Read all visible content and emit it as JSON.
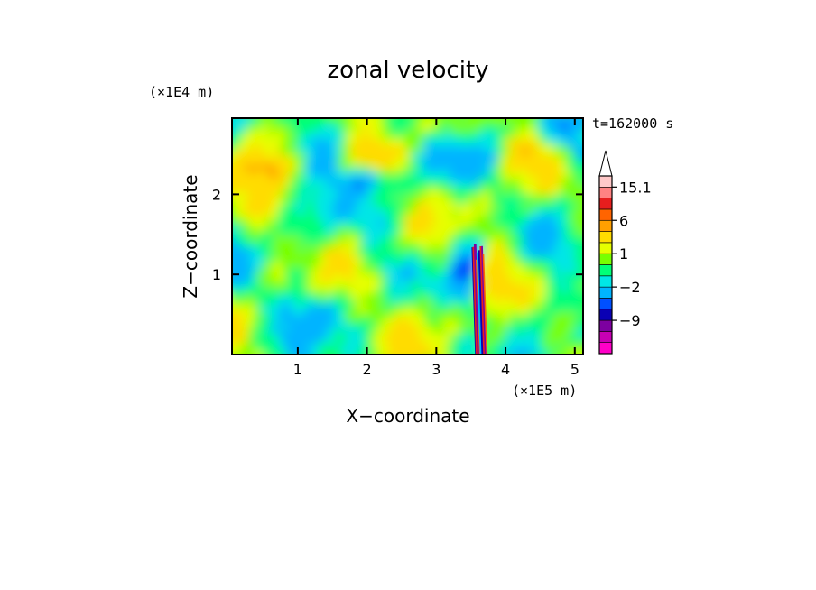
{
  "chart_data": {
    "type": "heatmap",
    "title": "zonal velocity",
    "xlabel": "X−coordinate",
    "ylabel": "Z−coordinate",
    "x_unit": "(×1E5 m)",
    "y_unit": "(×1E4 m)",
    "time_label": "t=162000 s",
    "xlim": [
      0.05,
      5.12
    ],
    "ylim": [
      0.0,
      2.95
    ],
    "x_ticks": [
      1,
      2,
      3,
      4,
      5
    ],
    "y_ticks": [
      1,
      2
    ],
    "colorbar": {
      "levels": [
        -15,
        -12,
        -9,
        -6,
        -4,
        -2,
        -1,
        0,
        1,
        2,
        4,
        6,
        9,
        12,
        15.1
      ],
      "colors": [
        "#ff00c8",
        "#c800b4",
        "#7d00a0",
        "#0a00b4",
        "#0050ff",
        "#00b4ff",
        "#00e6e6",
        "#00ff78",
        "#78ff00",
        "#e6ff00",
        "#ffdc00",
        "#ffa000",
        "#ff6400",
        "#e61e1e",
        "#ff8282",
        "#ffc8c8"
      ],
      "tick_labels": [
        "15.1",
        "6",
        "1",
        "−2",
        "−9"
      ],
      "tick_values": [
        15.1,
        6,
        1,
        -2,
        -9
      ],
      "extend": "max"
    }
  }
}
